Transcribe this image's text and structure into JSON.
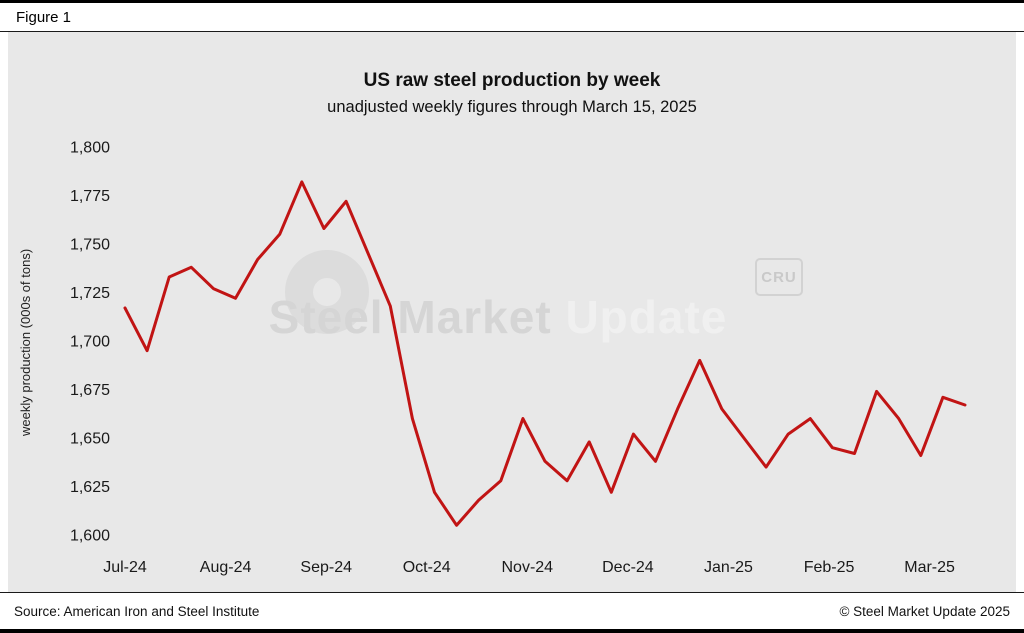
{
  "figure_label": "Figure 1",
  "chart_data": {
    "type": "line",
    "title": "US raw steel production by week",
    "subtitle": "unadjusted weekly figures through March 15, 2025",
    "xlabel": "",
    "ylabel": "weekly production (000s of tons)",
    "ylim": [
      1600,
      1800
    ],
    "grid": false,
    "legend": "none",
    "y_ticks": [
      1600,
      1625,
      1650,
      1675,
      1700,
      1725,
      1750,
      1775,
      1800
    ],
    "y_tick_labels": [
      "1,600",
      "1,625",
      "1,650",
      "1,675",
      "1,700",
      "1,725",
      "1,750",
      "1,775",
      "1,800"
    ],
    "x_tick_labels": [
      "Jul-24",
      "Aug-24",
      "Sep-24",
      "Oct-24",
      "Nov-24",
      "Dec-24",
      "Jan-25",
      "Feb-25",
      "Mar-25"
    ],
    "weeks_per_month_tick": 4.55,
    "x_unit": "week",
    "series": [
      {
        "name": "US raw steel production (000s of tons)",
        "color": "#c11414",
        "values": [
          1717,
          1695,
          1733,
          1738,
          1727,
          1722,
          1742,
          1755,
          1782,
          1758,
          1772,
          1745,
          1718,
          1660,
          1622,
          1605,
          1618,
          1628,
          1660,
          1638,
          1628,
          1648,
          1622,
          1652,
          1638,
          1665,
          1690,
          1665,
          1650,
          1635,
          1652,
          1660,
          1645,
          1642,
          1674,
          1660,
          1641,
          1671,
          1667
        ]
      }
    ]
  },
  "watermark": {
    "text_primary": "Steel Market",
    "text_secondary": "Update",
    "badge": "CRU"
  },
  "footer": {
    "source": "Source: American Iron and Steel Institute",
    "copyright": "© Steel Market Update 2025"
  }
}
